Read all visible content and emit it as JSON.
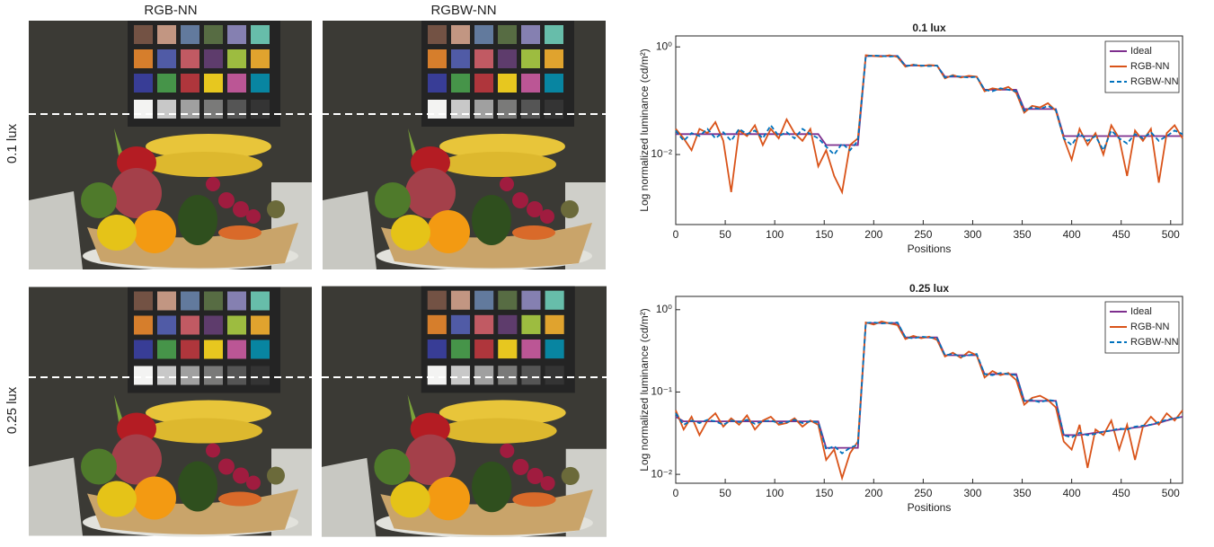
{
  "images": {
    "columns": [
      "RGB-NN",
      "RGBW-NN"
    ],
    "rows": [
      "0.1 lux",
      "0.25 lux"
    ]
  },
  "chart_data": [
    {
      "type": "line",
      "title": "0.1 lux",
      "x_label": "Positions",
      "y_label": "Log normalized luminance (cd/m²)",
      "log_y": true,
      "grid": false,
      "legend": "upper right",
      "xlim": [
        0,
        512
      ],
      "xticks": [
        0,
        50,
        100,
        150,
        200,
        250,
        300,
        350,
        400,
        450,
        500
      ],
      "ylim": [
        0.0005,
        1.6
      ],
      "yticks": [
        {
          "value": 0.01,
          "label": "10⁻²"
        },
        {
          "value": 1,
          "label": "10⁰"
        }
      ],
      "x": [
        0,
        8,
        16,
        24,
        32,
        40,
        48,
        56,
        64,
        72,
        80,
        88,
        96,
        104,
        112,
        120,
        128,
        136,
        144,
        152,
        160,
        168,
        176,
        184,
        192,
        200,
        208,
        216,
        224,
        232,
        240,
        248,
        256,
        264,
        272,
        280,
        288,
        296,
        304,
        312,
        320,
        328,
        336,
        344,
        352,
        360,
        368,
        376,
        384,
        392,
        400,
        408,
        416,
        424,
        432,
        440,
        448,
        456,
        464,
        472,
        480,
        488,
        496,
        504,
        512
      ],
      "series": [
        {
          "name": "Ideal",
          "color": "#7e2f8e",
          "style": "solid",
          "values": [
            0.024,
            0.024,
            0.024,
            0.024,
            0.024,
            0.024,
            0.024,
            0.024,
            0.024,
            0.024,
            0.024,
            0.024,
            0.024,
            0.024,
            0.024,
            0.024,
            0.024,
            0.024,
            0.024,
            0.015,
            0.015,
            0.015,
            0.015,
            0.015,
            0.68,
            0.68,
            0.68,
            0.68,
            0.68,
            0.45,
            0.45,
            0.45,
            0.45,
            0.45,
            0.28,
            0.28,
            0.28,
            0.28,
            0.28,
            0.16,
            0.16,
            0.16,
            0.16,
            0.16,
            0.07,
            0.07,
            0.07,
            0.07,
            0.07,
            0.022,
            0.022,
            0.022,
            0.022,
            0.022,
            0.022,
            0.022,
            0.022,
            0.022,
            0.022,
            0.022,
            0.022,
            0.022,
            0.022,
            0.022,
            0.022
          ]
        },
        {
          "name": "RGB-NN",
          "color": "#d95319",
          "style": "solid",
          "values": [
            0.03,
            0.02,
            0.012,
            0.03,
            0.025,
            0.04,
            0.018,
            0.002,
            0.028,
            0.022,
            0.035,
            0.015,
            0.03,
            0.02,
            0.045,
            0.025,
            0.018,
            0.03,
            0.006,
            0.012,
            0.004,
            0.002,
            0.015,
            0.02,
            0.7,
            0.68,
            0.66,
            0.7,
            0.65,
            0.43,
            0.47,
            0.44,
            0.46,
            0.45,
            0.26,
            0.3,
            0.27,
            0.29,
            0.28,
            0.15,
            0.17,
            0.16,
            0.18,
            0.14,
            0.06,
            0.08,
            0.075,
            0.09,
            0.065,
            0.02,
            0.008,
            0.03,
            0.015,
            0.025,
            0.01,
            0.035,
            0.02,
            0.004,
            0.028,
            0.018,
            0.03,
            0.003,
            0.025,
            0.035,
            0.02
          ]
        },
        {
          "name": "RGBW-NN",
          "color": "#0072bd",
          "style": "dashed",
          "values": [
            0.028,
            0.018,
            0.025,
            0.022,
            0.03,
            0.02,
            0.026,
            0.018,
            0.03,
            0.024,
            0.028,
            0.02,
            0.035,
            0.022,
            0.026,
            0.02,
            0.03,
            0.024,
            0.02,
            0.014,
            0.01,
            0.016,
            0.012,
            0.018,
            0.67,
            0.69,
            0.68,
            0.66,
            0.68,
            0.44,
            0.46,
            0.45,
            0.44,
            0.45,
            0.27,
            0.29,
            0.28,
            0.27,
            0.28,
            0.16,
            0.15,
            0.17,
            0.16,
            0.15,
            0.065,
            0.075,
            0.07,
            0.08,
            0.068,
            0.02,
            0.015,
            0.025,
            0.018,
            0.022,
            0.012,
            0.028,
            0.02,
            0.016,
            0.024,
            0.02,
            0.026,
            0.018,
            0.022,
            0.028,
            0.024
          ]
        }
      ]
    },
    {
      "type": "line",
      "title": "0.25 lux",
      "x_label": "Positions",
      "y_label": "Log normalized luminance (cd/m²)",
      "log_y": true,
      "grid": false,
      "legend": "upper right",
      "xlim": [
        0,
        512
      ],
      "xticks": [
        0,
        50,
        100,
        150,
        200,
        250,
        300,
        350,
        400,
        450,
        500
      ],
      "ylim": [
        0.0078,
        1.45
      ],
      "yticks": [
        {
          "value": 0.01,
          "label": "10⁻²"
        },
        {
          "value": 0.1,
          "label": "10⁻¹"
        },
        {
          "value": 1,
          "label": "10⁰"
        }
      ],
      "x": [
        0,
        8,
        16,
        24,
        32,
        40,
        48,
        56,
        64,
        72,
        80,
        88,
        96,
        104,
        112,
        120,
        128,
        136,
        144,
        152,
        160,
        168,
        176,
        184,
        192,
        200,
        208,
        216,
        224,
        232,
        240,
        248,
        256,
        264,
        272,
        280,
        288,
        296,
        304,
        312,
        320,
        328,
        336,
        344,
        352,
        360,
        368,
        376,
        384,
        392,
        400,
        408,
        416,
        424,
        432,
        440,
        448,
        456,
        464,
        472,
        480,
        488,
        496,
        504,
        512
      ],
      "series": [
        {
          "name": "Ideal",
          "color": "#7e2f8e",
          "style": "solid",
          "values": [
            0.05,
            0.044,
            0.044,
            0.044,
            0.044,
            0.044,
            0.044,
            0.044,
            0.044,
            0.044,
            0.044,
            0.044,
            0.044,
            0.044,
            0.044,
            0.044,
            0.044,
            0.044,
            0.044,
            0.021,
            0.021,
            0.021,
            0.021,
            0.021,
            0.69,
            0.69,
            0.69,
            0.69,
            0.69,
            0.46,
            0.46,
            0.46,
            0.46,
            0.46,
            0.28,
            0.28,
            0.28,
            0.28,
            0.28,
            0.165,
            0.165,
            0.165,
            0.165,
            0.165,
            0.078,
            0.078,
            0.078,
            0.078,
            0.078,
            0.03,
            0.03,
            0.03,
            0.031,
            0.032,
            0.033,
            0.034,
            0.035,
            0.036,
            0.037,
            0.038,
            0.04,
            0.042,
            0.045,
            0.048,
            0.05
          ]
        },
        {
          "name": "RGB-NN",
          "color": "#d95319",
          "style": "solid",
          "values": [
            0.06,
            0.035,
            0.05,
            0.03,
            0.045,
            0.055,
            0.038,
            0.048,
            0.04,
            0.052,
            0.035,
            0.045,
            0.05,
            0.04,
            0.042,
            0.048,
            0.038,
            0.045,
            0.04,
            0.015,
            0.02,
            0.009,
            0.018,
            0.025,
            0.7,
            0.66,
            0.72,
            0.68,
            0.65,
            0.44,
            0.48,
            0.45,
            0.47,
            0.43,
            0.27,
            0.3,
            0.26,
            0.31,
            0.28,
            0.15,
            0.18,
            0.16,
            0.17,
            0.14,
            0.07,
            0.085,
            0.09,
            0.08,
            0.065,
            0.025,
            0.02,
            0.04,
            0.012,
            0.035,
            0.03,
            0.045,
            0.02,
            0.04,
            0.015,
            0.038,
            0.05,
            0.04,
            0.055,
            0.045,
            0.06
          ]
        },
        {
          "name": "RGBW-NN",
          "color": "#0072bd",
          "style": "dashed",
          "values": [
            0.055,
            0.04,
            0.045,
            0.042,
            0.046,
            0.044,
            0.04,
            0.045,
            0.043,
            0.046,
            0.041,
            0.044,
            0.045,
            0.042,
            0.043,
            0.046,
            0.042,
            0.044,
            0.043,
            0.02,
            0.022,
            0.018,
            0.021,
            0.023,
            0.69,
            0.7,
            0.68,
            0.69,
            0.7,
            0.46,
            0.45,
            0.47,
            0.46,
            0.45,
            0.28,
            0.29,
            0.27,
            0.28,
            0.29,
            0.165,
            0.16,
            0.17,
            0.165,
            0.16,
            0.078,
            0.08,
            0.075,
            0.08,
            0.078,
            0.03,
            0.028,
            0.032,
            0.03,
            0.031,
            0.033,
            0.034,
            0.036,
            0.035,
            0.038,
            0.039,
            0.04,
            0.043,
            0.046,
            0.048,
            0.05
          ]
        }
      ]
    }
  ]
}
